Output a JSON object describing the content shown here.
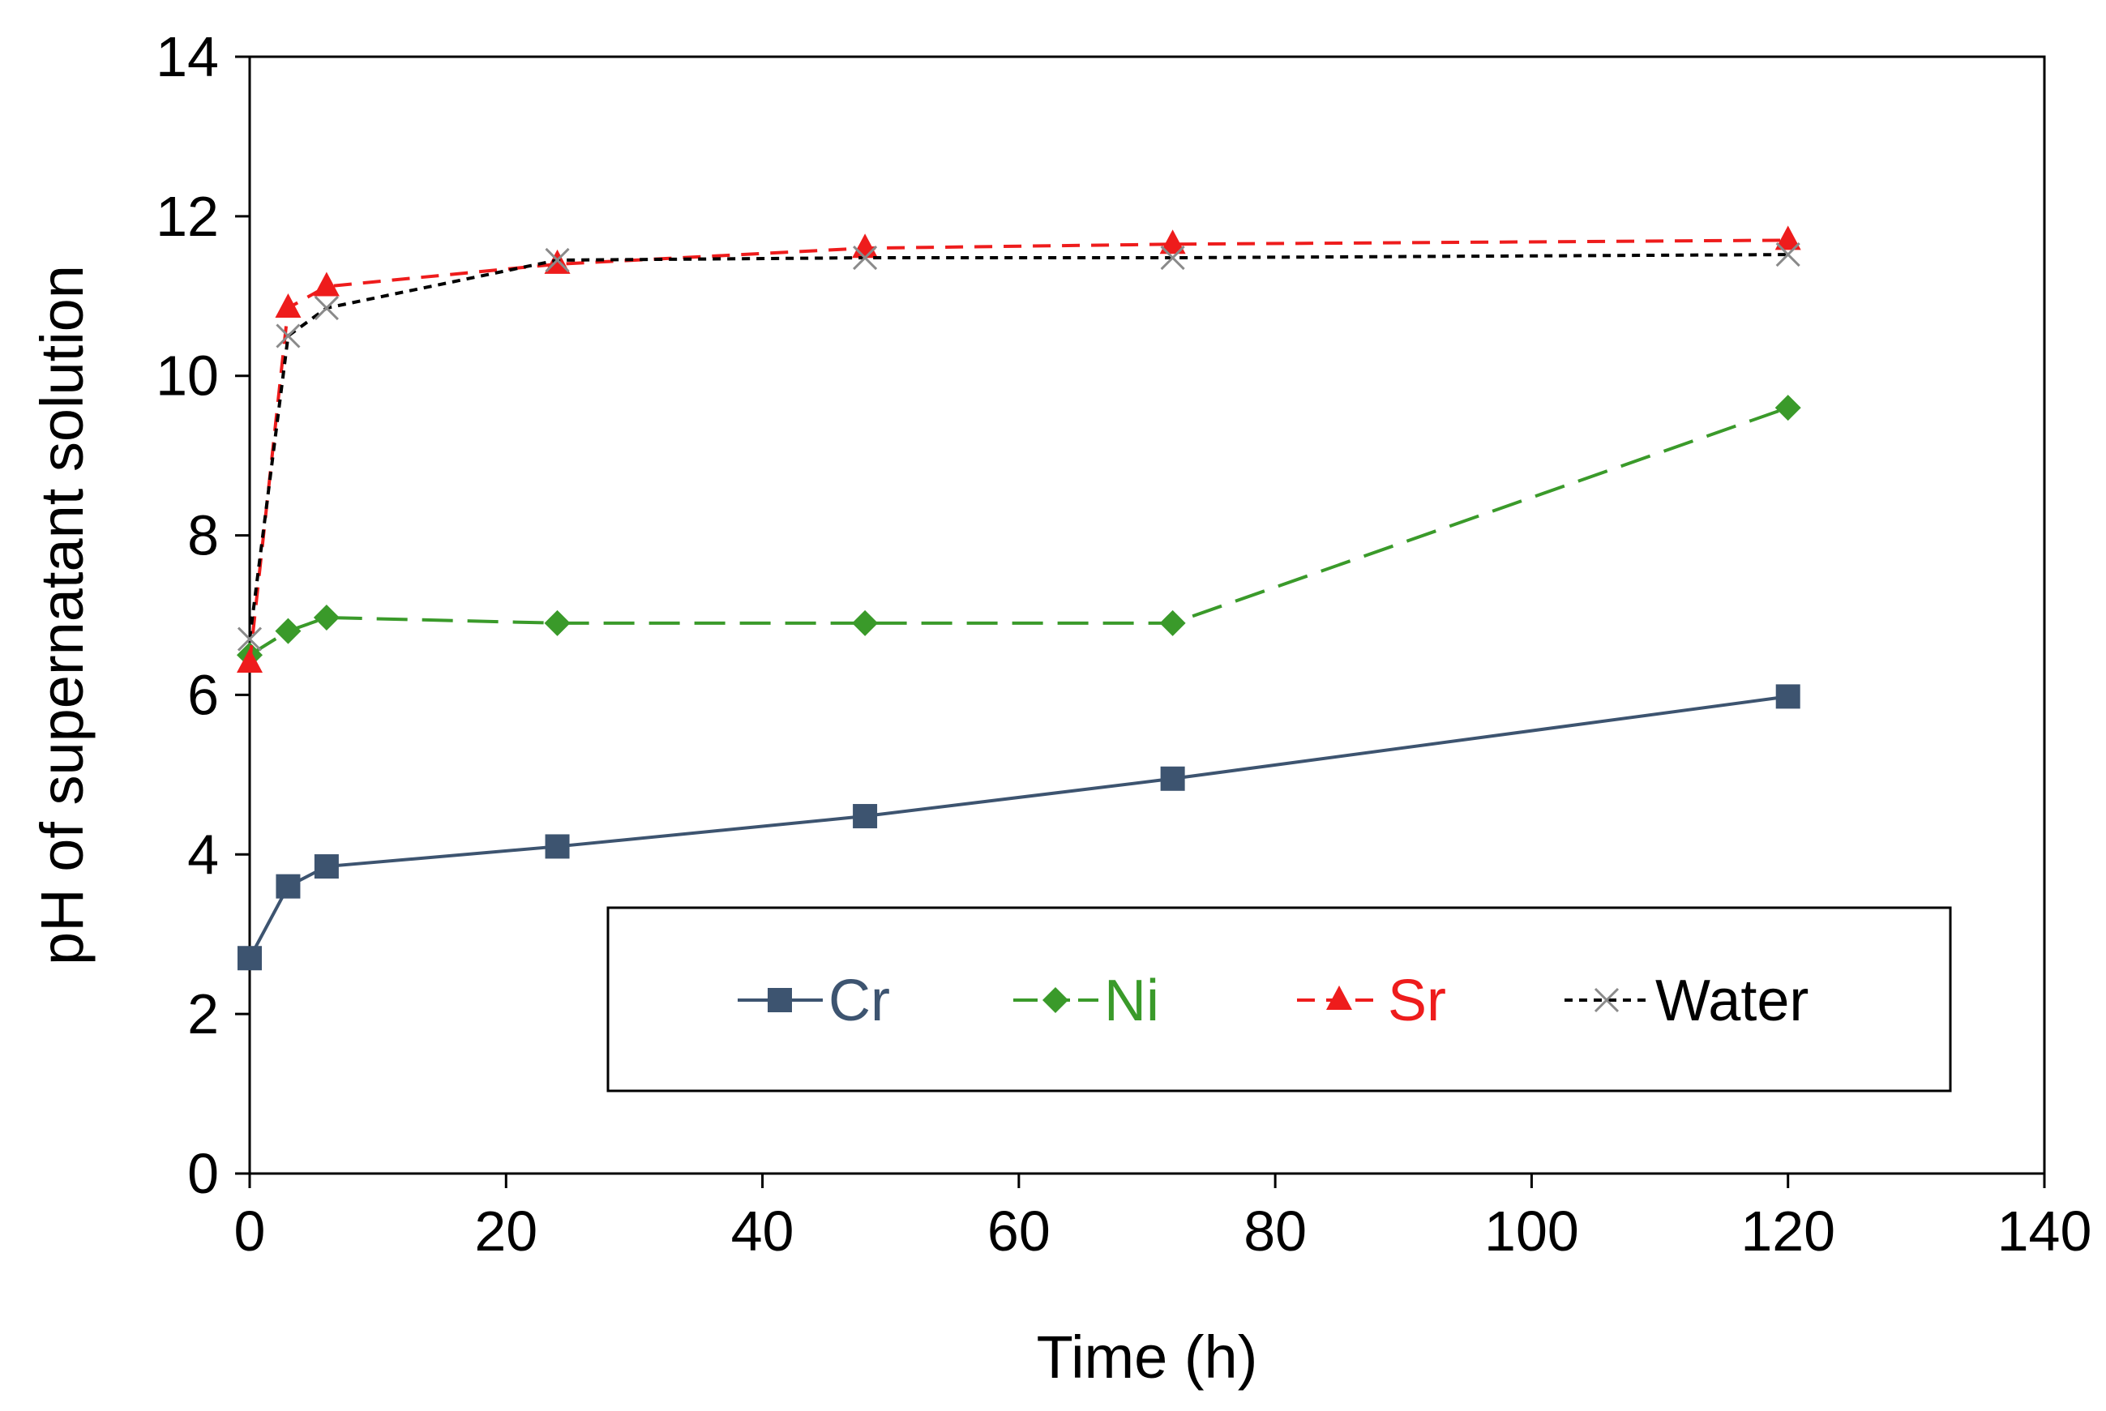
{
  "chart_data": {
    "type": "line",
    "title": "",
    "xlabel": "Time (h)",
    "ylabel": "pH of supernatant solution",
    "xlim": [
      0,
      140
    ],
    "ylim": [
      0,
      14
    ],
    "xticks": [
      0,
      20,
      40,
      60,
      80,
      100,
      120,
      140
    ],
    "yticks": [
      0,
      2,
      4,
      6,
      8,
      10,
      12,
      14
    ],
    "grid": false,
    "legend_position": "bottom-center (inside plot)",
    "series": [
      {
        "name": "Cr",
        "color": "#3d5470",
        "dash": "solid",
        "marker": "square",
        "x": [
          0,
          3,
          6,
          24,
          48,
          72,
          120
        ],
        "y": [
          2.7,
          3.6,
          3.85,
          4.1,
          4.48,
          4.95,
          5.98
        ]
      },
      {
        "name": "Ni",
        "color": "#3a9a2a",
        "dash": "long-dash",
        "marker": "diamond",
        "x": [
          0,
          3,
          6,
          24,
          48,
          72,
          120
        ],
        "y": [
          6.5,
          6.8,
          6.97,
          6.9,
          6.9,
          6.9,
          9.6
        ]
      },
      {
        "name": "Sr",
        "color": "#ee1c1c",
        "dash": "dash",
        "marker": "triangle",
        "x": [
          0,
          3,
          6,
          24,
          48,
          72,
          120
        ],
        "y": [
          6.4,
          10.85,
          11.12,
          11.4,
          11.6,
          11.65,
          11.7
        ]
      },
      {
        "name": "Water",
        "color": "#000000",
        "dash": "short-dash",
        "marker": "x",
        "x": [
          0,
          3,
          6,
          24,
          48,
          72,
          120
        ],
        "y": [
          6.7,
          10.5,
          10.85,
          11.45,
          11.48,
          11.48,
          11.52
        ]
      }
    ]
  }
}
